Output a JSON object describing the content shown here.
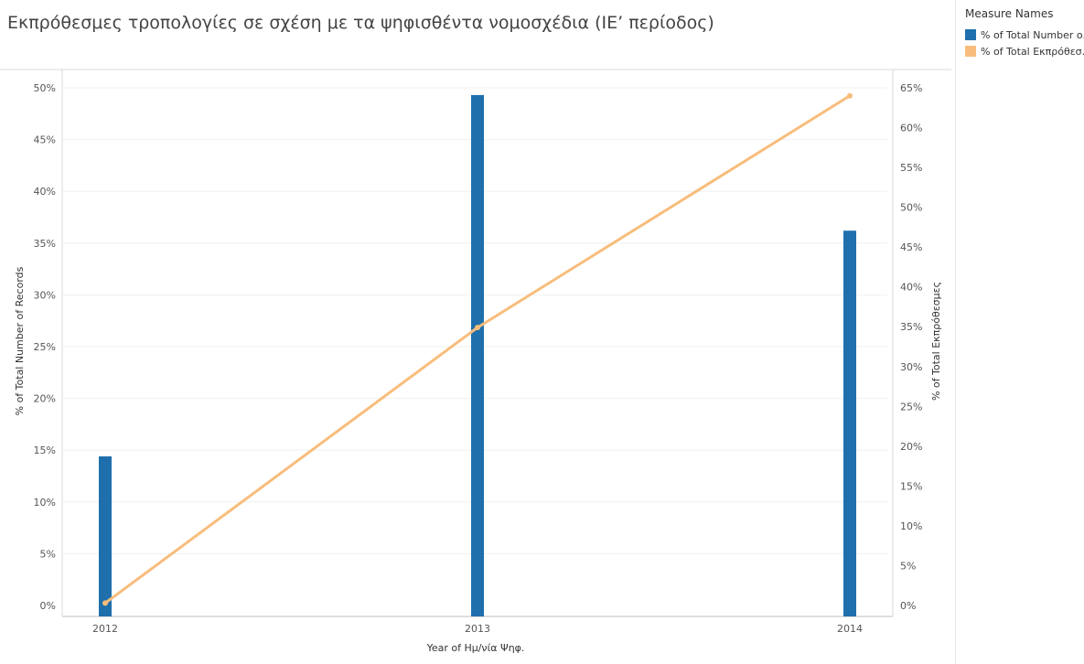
{
  "chart_data": {
    "type": "bar",
    "title": "Εκπρόθεσμες τροπολογίες σε σχέση με τα ψηφισθέντα νομοσχέδια (ΙΕ’ περίοδος)",
    "categories": [
      "2012",
      "2013",
      "2014"
    ],
    "xlabel": "Year of Ημ/νία Ψηφ.",
    "ylabel": "% of Total Number of Records",
    "ylabel_right": "% of Total Εκπρόθεσμες",
    "ylim": [
      0,
      50
    ],
    "ylim_right": [
      0,
      65
    ],
    "yticks": [
      "0%",
      "5%",
      "10%",
      "15%",
      "20%",
      "25%",
      "30%",
      "35%",
      "40%",
      "45%",
      "50%"
    ],
    "yticks_right": [
      "0%",
      "5%",
      "10%",
      "15%",
      "20%",
      "25%",
      "30%",
      "35%",
      "40%",
      "45%",
      "50%",
      "55%",
      "60%",
      "65%"
    ],
    "grid": true,
    "legend_position": "top-right",
    "legend_title": "Measure Names",
    "series": [
      {
        "name": "% of Total Number o..",
        "type": "bar",
        "axis": "left",
        "color": "#1f6fad",
        "values": [
          14.4,
          49.3,
          36.2
        ]
      },
      {
        "name": "% of Total Εκπρόθεσ..",
        "type": "line",
        "axis": "right",
        "color": "#f8bd7c",
        "values": [
          0.3,
          34.9,
          64.0
        ]
      }
    ]
  }
}
